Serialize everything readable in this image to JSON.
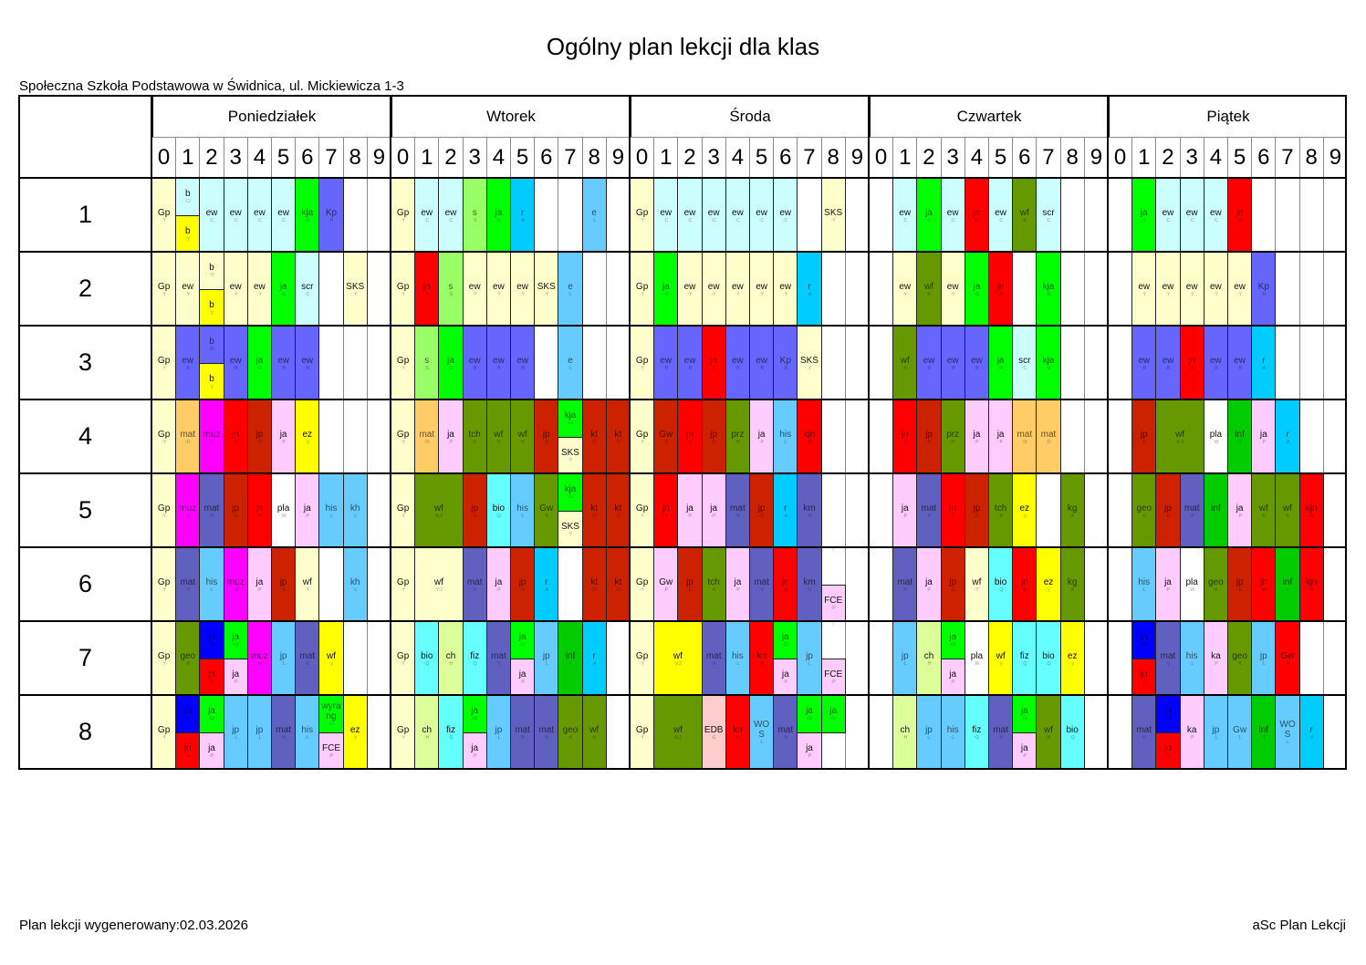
{
  "title": "Ogólny plan lekcji dla klas",
  "school": "Społeczna Szkoła Podstawowa w Świdnica, ul. Mickiewicza 1-3",
  "footer": {
    "generated": "Plan lekcji wygenerowany:02.03.2026",
    "app": "aSc Plan Lekcji"
  },
  "days": [
    "Poniedziałek",
    "Wtorek",
    "Środa",
    "Czwartek",
    "Piątek"
  ],
  "periods": [
    "0",
    "1",
    "2",
    "3",
    "4",
    "5",
    "6",
    "7",
    "8",
    "9"
  ],
  "colors": {
    "Y": "#ffffcc",
    "C": "#ccffff",
    "y": "#ffff00",
    "G": "#00ff00",
    "B": "#6666ff",
    "O": "#ffcc66",
    "M": "#ff00ff",
    "R": "#ff0000",
    "D": "#cc2200",
    "P": "#ffccff",
    "L": "#66ccff",
    "V": "#6060c0",
    "W": "#ffffff",
    "S": "#99ff66",
    "A": "#00ccff",
    "K": "#669900",
    "Q": "#66ffff",
    "H": "#ddff99",
    "I": "#00cc00",
    "N": "#0000ff",
    "E": "#ffcccc"
  },
  "classes": [
    {
      "name": "1",
      "days": [
        [
          "Gp:Y",
          "b:C/b:y",
          "ew:C",
          "ew:C",
          "ew:C",
          "ew:C",
          "kja:G",
          "Kp:B",
          "",
          ""
        ],
        [
          "Gp:Y",
          "ew:C",
          "ew:C",
          "s:S",
          "ja:G",
          "r:A",
          "",
          "",
          "e:L",
          ""
        ],
        [
          "Gp:Y",
          "ew:C",
          "ew:C",
          "ew:C",
          "ew:C",
          "ew:C",
          "ew:C",
          "",
          "SKS:Y",
          ""
        ],
        [
          "",
          "ew:C",
          "ja:G",
          "ew:C",
          "jn:R",
          "ew:C",
          "wf:K",
          "scr:C",
          "",
          ""
        ],
        [
          "",
          "ja:G",
          "ew:C",
          "ew:C",
          "ew:C",
          "jn:R",
          "",
          "",
          "",
          ""
        ]
      ]
    },
    {
      "name": "2",
      "days": [
        [
          "Gp:Y",
          "ew:Y",
          "b:Y/b:y",
          "ew:Y",
          "ew:Y",
          "ja:G",
          "scr:C",
          "",
          "SKS:Y",
          ""
        ],
        [
          "Gp:Y",
          "jn:R",
          "s:S",
          "ew:Y",
          "ew:Y",
          "ew:Y",
          "SKS:Y",
          "e:L",
          "",
          ""
        ],
        [
          "Gp:Y",
          "ja:G",
          "ew:Y",
          "ew:Y",
          "ew:Y",
          "ew:Y",
          "ew:Y",
          "r:A",
          "",
          ""
        ],
        [
          "",
          "ew:Y",
          "wf:K",
          "ew:Y",
          "ja:G",
          "jn:R",
          "",
          "kja:G",
          "",
          ""
        ],
        [
          "",
          "ew:Y",
          "ew:Y",
          "ew:Y",
          "ew:Y",
          "ew:Y",
          "Kp:B",
          "",
          "",
          ""
        ]
      ]
    },
    {
      "name": "3",
      "days": [
        [
          "Gp:Y",
          "ew:B",
          "b:B/b:y",
          "ew:B",
          "ja:G",
          "ew:B",
          "ew:B",
          "",
          "",
          ""
        ],
        [
          "Gp:Y",
          "s:S",
          "ja:G",
          "ew:B",
          "ew:B",
          "ew:B",
          "",
          "e:L",
          "",
          ""
        ],
        [
          "Gp:Y",
          "ew:B",
          "ew:B",
          "jn:R",
          "ew:B",
          "ew:B",
          "Kp:B",
          "SKS:Y",
          "",
          ""
        ],
        [
          "",
          "wf:K",
          "ew:B",
          "ew:B",
          "ew:B",
          "ja:G",
          "scr:C",
          "kja:G",
          "",
          ""
        ],
        [
          "",
          "ew:B",
          "ew:B",
          "jn:R",
          "ew:B",
          "ew:B",
          "r:A",
          "",
          "",
          ""
        ]
      ]
    },
    {
      "name": "4",
      "days": [
        [
          "Gp:Y",
          "mat:O",
          "muz:M",
          "jn:R",
          "jp:D",
          "ja:P",
          "ez:y",
          "",
          "",
          ""
        ],
        [
          "Gp:Y",
          "mat:O",
          "ja:P",
          "tch:K",
          "wf:K",
          "wf:K",
          "jp:D",
          "kja:G/SKS:Y",
          "kt:D",
          "kt:D"
        ],
        [
          "Gp:Y",
          "Gw:D",
          "jn:R",
          "jp:D",
          "prz:K",
          "ja:P",
          "his:L",
          "kjn:R",
          "",
          ""
        ],
        [
          "",
          "jn:R",
          "jp:D",
          "prz:K",
          "ja:P",
          "ja:P",
          "mat:O",
          "mat:O",
          "",
          ""
        ],
        [
          "",
          "jp:D",
          "wf:K:2",
          "pla:W",
          "inf:I",
          "ja:P",
          "r:A",
          "",
          ""
        ]
      ]
    },
    {
      "name": "5",
      "days": [
        [
          "Gp:Y",
          "muz:M",
          "mat:V",
          "jp:D",
          "jn:R",
          "pla:W",
          "ja:P",
          "his:L",
          "kh:L",
          ""
        ],
        [
          "Gp:Y",
          "wf:K:2",
          "jp:D",
          "bio:Q",
          "his:L",
          "Gw:K",
          "kja:G/SKS:Y",
          "kt:D",
          "kt:D"
        ],
        [
          "Gp:Y",
          "jn:R",
          "ja:P",
          "ja:P",
          "mat:V",
          "jp:D",
          "r:A",
          "km:V",
          "",
          ""
        ],
        [
          "",
          "ja:P",
          "mat:V",
          "jn:R",
          "jp:D",
          "tch:K",
          "ez:y",
          "",
          "kg:K",
          ""
        ],
        [
          "",
          "geo:K",
          "jp:D",
          "mat:V",
          "inf:I",
          "ja:P",
          "wf:K",
          "wf:K",
          "kjn:R",
          ""
        ]
      ]
    },
    {
      "name": "6",
      "days": [
        [
          "Gp:Y",
          "mat:V",
          "his:L",
          "muz:M",
          "ja:P",
          "jp:D",
          "wf:Y",
          "",
          "kh:L",
          ""
        ],
        [
          "Gp:Y",
          "wf:Y:2",
          "mat:V",
          "ja:P",
          "jp:D",
          "r:A",
          "",
          "kt:D",
          "kt:D"
        ],
        [
          "Gp:Y",
          "Gw:P",
          "jp:D",
          "tch:K",
          "ja:P",
          "mat:V",
          "jn:R",
          "km:V",
          "/FCE:P",
          ""
        ],
        [
          "",
          "mat:V",
          "ja:P",
          "jp:D",
          "wf:Y",
          "bio:Q",
          "jn:R",
          "ez:y",
          "kg:K",
          ""
        ],
        [
          "",
          "his:L",
          "ja:P",
          "pla:W",
          "geo:K",
          "jp:D",
          "jn:R",
          "inf:I",
          "kjn:R",
          ""
        ]
      ]
    },
    {
      "name": "7",
      "days": [
        [
          "Gp:Y",
          "geo:K",
          "jn:N/jn:R",
          "ja:G/ja:P",
          "muz:M",
          "jp:L",
          "mat:V",
          "wf:y",
          "",
          ""
        ],
        [
          "Gp:Y",
          "bio:Q",
          "ch:H",
          "fiz:Q",
          "mat:V",
          "ja:G/ja:P",
          "jp:L",
          "inf:I",
          "r:A",
          ""
        ],
        [
          "Gp:Y",
          "wf:y:2",
          "mat:V",
          "his:L",
          "kn:R",
          "ja:G/ja:P",
          "jp:L",
          "/FCE:P",
          ""
        ],
        [
          "",
          "jp:L",
          "ch:H",
          "ja:G/ja:P",
          "pla:W",
          "wf:y",
          "fiz:Q",
          "bio:Q",
          "ez:y",
          ""
        ],
        [
          "",
          "jn:N/jn:R",
          "mat:V",
          "his:L",
          "ka:P",
          "geo:K",
          "jp:L",
          "Gw:R",
          "",
          ""
        ]
      ]
    },
    {
      "name": "8",
      "days": [
        [
          "Gp:Y",
          "jn:N/jn:R",
          "ja:G/ja:P",
          "jp:L",
          "jp:L",
          "mat:V",
          "his:L",
          "wyrang:G/FCE:P",
          "ez:y",
          ""
        ],
        [
          "Gp:Y",
          "ch:H",
          "fiz:Q",
          "ja:G/ja:P",
          "jp:L",
          "mat:V",
          "mat:V",
          "geo:K",
          "wf:K",
          ""
        ],
        [
          "Gp:Y",
          "wf:K:2",
          "EDB:E",
          "kn:R",
          "WOS:L",
          "mat:V",
          "ja:G/ja:P",
          "ja:G/",
          ""
        ],
        [
          "",
          "ch:H",
          "jp:L",
          "his:L",
          "fiz:Q",
          "mat:V",
          "ja:G/ja:P",
          "wf:K",
          "bio:Q",
          ""
        ],
        [
          "",
          "mat:V",
          "jn:N/jn:R",
          "ka:P",
          "jp:L",
          "Gw:L",
          "inf:I",
          "WOS:L",
          "r:A",
          ""
        ]
      ]
    }
  ]
}
